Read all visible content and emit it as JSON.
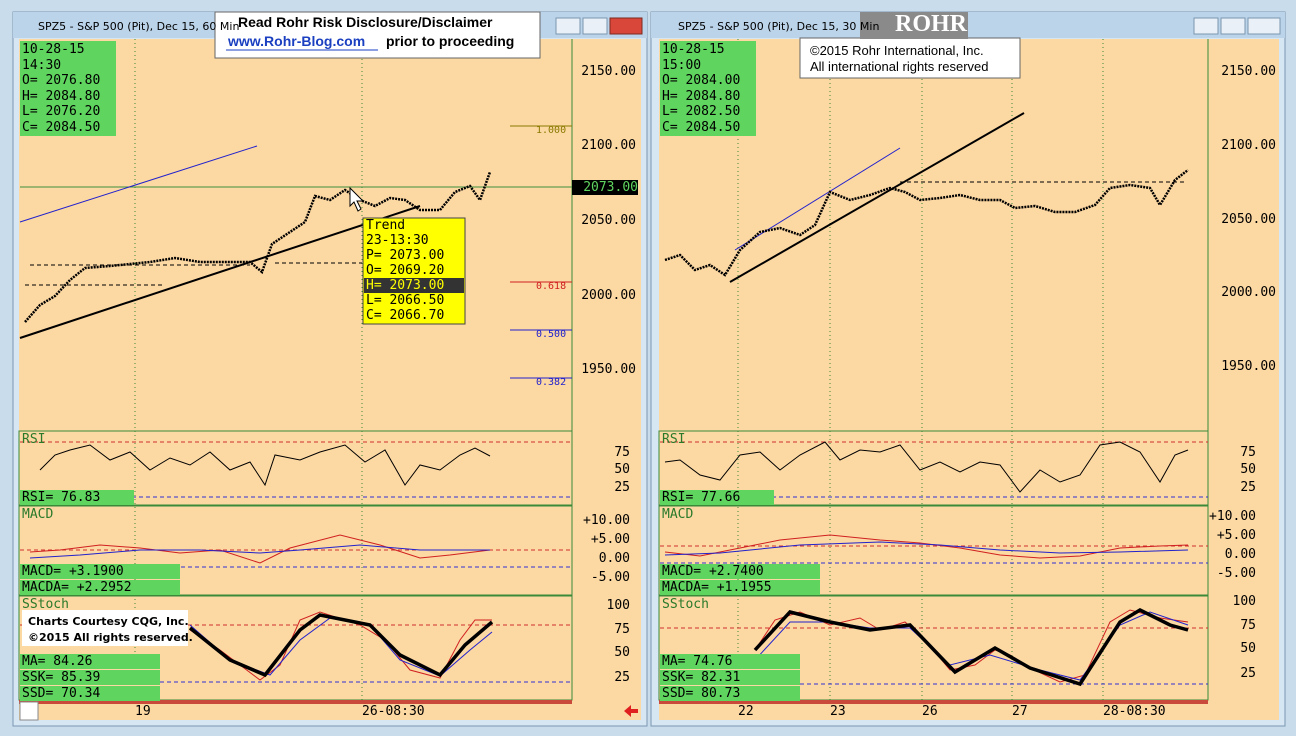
{
  "windows": [
    {
      "title": "SPZ5 - S&P 500 (Pit), Dec 15, 60 Min",
      "notice": [
        "Read Rohr Risk Disclosure/Disclaimer",
        "www.Rohr-Blog.com",
        "prior to proceeding"
      ],
      "data_box": [
        "10-28-15",
        "14:30",
        "O= 2076.80",
        "H= 2084.80",
        "L= 2076.20",
        "C= 2084.50"
      ],
      "price_axis": [
        "2150.00",
        "2100.00",
        "2050.00",
        "2000.00",
        "1950.00"
      ],
      "current_price": "2073.00",
      "fib_labels": [
        "1.000",
        "0.618",
        "0.500",
        "0.382"
      ],
      "tooltip": [
        "Trend",
        "23-13:30",
        "P= 2073.00",
        "O= 2069.20",
        "H= 2073.00",
        "L= 2066.50",
        "C= 2066.70"
      ],
      "rsi": {
        "label": "RSI",
        "readout": [
          "RSI= 76.83"
        ],
        "axis": [
          "75",
          "50",
          "25"
        ]
      },
      "macd": {
        "label": "MACD",
        "readout": [
          "MACD= +3.1900",
          "MACDA= +2.2952"
        ],
        "axis": [
          "+10.00",
          "+5.00",
          "0.00",
          "-5.00"
        ]
      },
      "sstoch": {
        "label": "SStoch",
        "readout": [
          "MA= 84.26",
          "SSK= 85.39",
          "SSD= 70.34"
        ],
        "axis": [
          "100",
          "75",
          "50",
          "25"
        ]
      },
      "courtesy": [
        "Charts Courtesy CQG, Inc.",
        "©2015 All rights reserved."
      ],
      "x_axis": [
        "19",
        "26-08:30"
      ]
    },
    {
      "title": "SPZ5 - S&P 500 (Pit), Dec 15, 30 Min",
      "logo": "ROHR",
      "copyright": [
        "©2015 Rohr International, Inc.",
        "All international rights reserved"
      ],
      "data_box": [
        "10-28-15",
        "15:00",
        "O= 2084.00",
        "H= 2084.80",
        "L= 2082.50",
        "C= 2084.50"
      ],
      "price_axis": [
        "2150.00",
        "2100.00",
        "2050.00",
        "2000.00",
        "1950.00"
      ],
      "rsi": {
        "label": "RSI",
        "readout": [
          "RSI= 77.66"
        ],
        "axis": [
          "75",
          "50",
          "25"
        ]
      },
      "macd": {
        "label": "MACD",
        "readout": [
          "MACD= +2.7400",
          "MACDA= +1.1955"
        ],
        "axis": [
          "+10.00",
          "+5.00",
          "0.00",
          "-5.00"
        ]
      },
      "sstoch": {
        "label": "SStoch",
        "readout": [
          "MA= 74.76",
          "SSK= 82.31",
          "SSD= 80.73"
        ],
        "axis": [
          "100",
          "75",
          "50",
          "25"
        ]
      },
      "x_axis": [
        "22",
        "23",
        "26",
        "27",
        "28-08:30"
      ]
    }
  ]
}
